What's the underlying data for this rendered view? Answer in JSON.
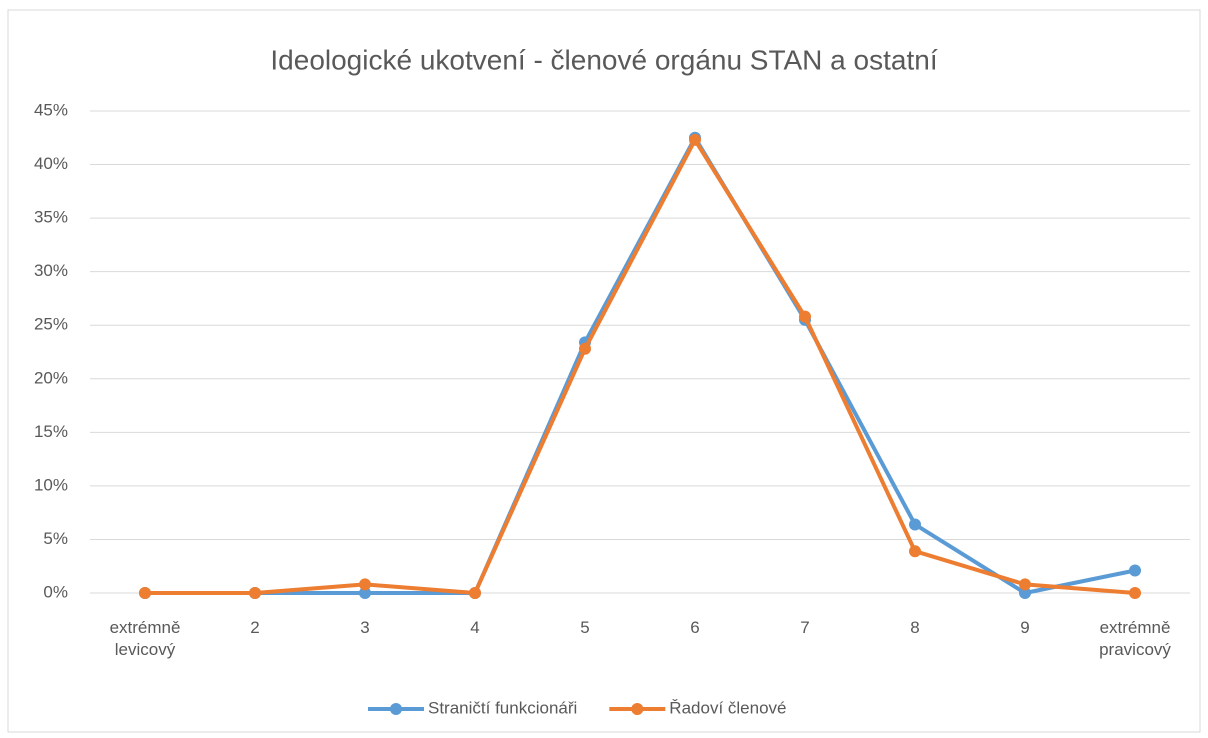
{
  "chart_data": {
    "type": "line",
    "title": "Ideologické ukotvení - členové orgánu STAN a ostatní",
    "categories": [
      "extrémně levicový",
      "2",
      "3",
      "4",
      "5",
      "6",
      "7",
      "8",
      "9",
      "extrémně pravicový"
    ],
    "series": [
      {
        "name": "Straničtí funkcionáři",
        "color": "#5b9bd5",
        "values": [
          0,
          0,
          0,
          0,
          23.4,
          42.5,
          25.5,
          6.4,
          0,
          2.1
        ]
      },
      {
        "name": "Řadoví členové",
        "color": "#ed7d31",
        "values": [
          0,
          0,
          0.8,
          0,
          22.8,
          42.3,
          25.8,
          3.9,
          0.8,
          0
        ]
      }
    ],
    "ylim": [
      0,
      45
    ],
    "yticks": [
      {
        "value": 0,
        "label": "0%"
      },
      {
        "value": 5,
        "label": "5%"
      },
      {
        "value": 10,
        "label": "10%"
      },
      {
        "value": 15,
        "label": "15%"
      },
      {
        "value": 20,
        "label": "20%"
      },
      {
        "value": 25,
        "label": "25%"
      },
      {
        "value": 30,
        "label": "30%"
      },
      {
        "value": 35,
        "label": "35%"
      },
      {
        "value": 40,
        "label": "40%"
      },
      {
        "value": 45,
        "label": "45%"
      }
    ],
    "grid": true,
    "legend": "bottom"
  }
}
